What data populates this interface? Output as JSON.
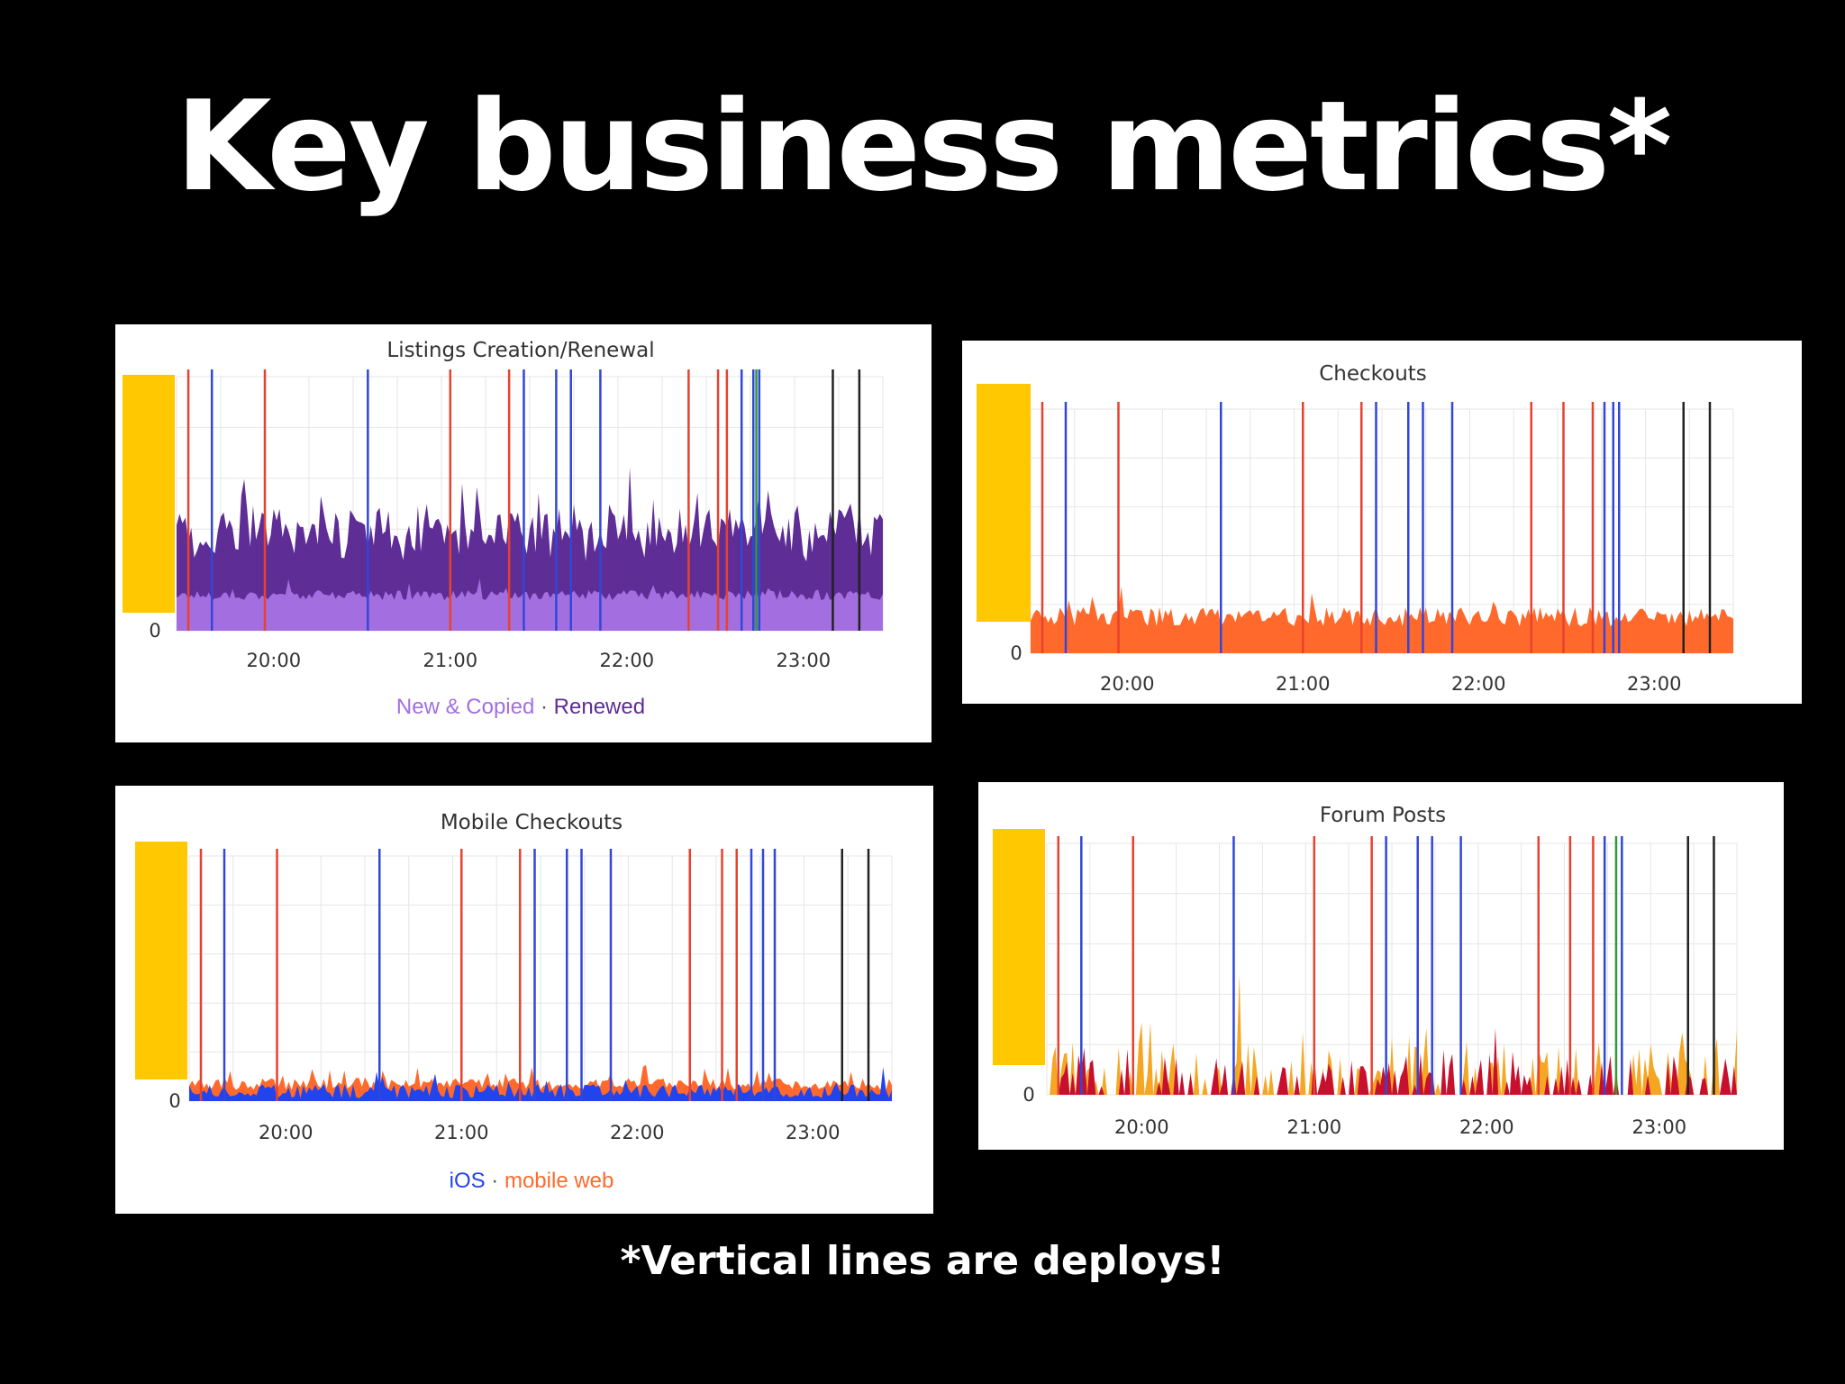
{
  "slide": {
    "title": "Key business metrics*",
    "footnote": "*Vertical lines are deploys!"
  },
  "colors": {
    "background": "#000000",
    "panel": "#ffffff",
    "grid": "#e6e6e6",
    "redacted_axis": "#ffc800",
    "deploy_red": "#e8412e",
    "deploy_blue": "#3246d8",
    "deploy_green": "#2e9a3c",
    "deploy_black": "#222222"
  },
  "chart_data": [
    {
      "type": "area",
      "title": "Listings Creation/Renewal",
      "x_ticks": [
        "20:00",
        "21:00",
        "22:00",
        "23:00"
      ],
      "x_range": [
        "19:27",
        "23:27"
      ],
      "y_ticks": [
        "0"
      ],
      "y_axis_redacted": true,
      "stacked": true,
      "legend_placement": "bottom-center",
      "legend_separator": "·",
      "series": [
        {
          "name": "New & Copied",
          "color": "#a36fe0",
          "level": 0.14,
          "noise": 0.02
        },
        {
          "name": "Renewed",
          "color": "#5e2d96",
          "level": 0.25,
          "noise": 0.1
        }
      ],
      "deploys": [
        {
          "t": "19:31",
          "c": "red"
        },
        {
          "t": "19:39",
          "c": "blue"
        },
        {
          "t": "19:57",
          "c": "red"
        },
        {
          "t": "20:32",
          "c": "blue"
        },
        {
          "t": "21:00",
          "c": "red"
        },
        {
          "t": "21:20",
          "c": "red"
        },
        {
          "t": "21:25",
          "c": "blue"
        },
        {
          "t": "21:36",
          "c": "blue"
        },
        {
          "t": "21:41",
          "c": "blue"
        },
        {
          "t": "21:51",
          "c": "blue"
        },
        {
          "t": "22:21",
          "c": "red"
        },
        {
          "t": "22:31",
          "c": "red"
        },
        {
          "t": "22:34",
          "c": "red"
        },
        {
          "t": "22:39",
          "c": "blue"
        },
        {
          "t": "22:43",
          "c": "blue"
        },
        {
          "t": "22:44",
          "c": "green"
        },
        {
          "t": "22:45",
          "c": "blue"
        },
        {
          "t": "23:10",
          "c": "black"
        },
        {
          "t": "23:19",
          "c": "black"
        }
      ]
    },
    {
      "type": "area",
      "title": "Checkouts",
      "x_ticks": [
        "20:00",
        "21:00",
        "22:00",
        "23:00"
      ],
      "x_range": [
        "19:27",
        "23:27"
      ],
      "y_ticks": [
        "0"
      ],
      "y_axis_redacted": true,
      "stacked": false,
      "series": [
        {
          "name": "",
          "color": "#ff6a2c",
          "level": 0.15,
          "noise": 0.04
        }
      ],
      "deploys": [
        {
          "t": "19:31",
          "c": "red"
        },
        {
          "t": "19:39",
          "c": "blue"
        },
        {
          "t": "19:57",
          "c": "red"
        },
        {
          "t": "20:32",
          "c": "blue"
        },
        {
          "t": "21:00",
          "c": "red"
        },
        {
          "t": "21:20",
          "c": "red"
        },
        {
          "t": "21:25",
          "c": "blue"
        },
        {
          "t": "21:36",
          "c": "blue"
        },
        {
          "t": "21:41",
          "c": "blue"
        },
        {
          "t": "21:51",
          "c": "blue"
        },
        {
          "t": "22:18",
          "c": "red"
        },
        {
          "t": "22:29",
          "c": "red"
        },
        {
          "t": "22:39",
          "c": "red"
        },
        {
          "t": "22:43",
          "c": "blue"
        },
        {
          "t": "22:46",
          "c": "blue"
        },
        {
          "t": "22:48",
          "c": "blue"
        },
        {
          "t": "23:10",
          "c": "black"
        },
        {
          "t": "23:19",
          "c": "black"
        }
      ]
    },
    {
      "type": "area",
      "title": "Mobile Checkouts",
      "x_ticks": [
        "20:00",
        "21:00",
        "22:00",
        "23:00"
      ],
      "x_range": [
        "19:27",
        "23:27"
      ],
      "y_ticks": [
        "0"
      ],
      "y_axis_redacted": true,
      "stacked": false,
      "legend_placement": "bottom-center",
      "legend_separator": "·",
      "series": [
        {
          "name": "mobile web",
          "color": "#ff6a2c",
          "level": 0.07,
          "noise": 0.025
        },
        {
          "name": "iOS",
          "color": "#2244ee",
          "level": 0.04,
          "noise": 0.03
        }
      ],
      "deploys": [
        {
          "t": "19:31",
          "c": "red"
        },
        {
          "t": "19:39",
          "c": "blue"
        },
        {
          "t": "19:57",
          "c": "red"
        },
        {
          "t": "20:32",
          "c": "blue"
        },
        {
          "t": "21:00",
          "c": "red"
        },
        {
          "t": "21:20",
          "c": "red"
        },
        {
          "t": "21:25",
          "c": "blue"
        },
        {
          "t": "21:36",
          "c": "blue"
        },
        {
          "t": "21:41",
          "c": "blue"
        },
        {
          "t": "21:51",
          "c": "blue"
        },
        {
          "t": "22:18",
          "c": "red"
        },
        {
          "t": "22:29",
          "c": "red"
        },
        {
          "t": "22:34",
          "c": "red"
        },
        {
          "t": "22:39",
          "c": "blue"
        },
        {
          "t": "22:43",
          "c": "blue"
        },
        {
          "t": "22:47",
          "c": "blue"
        },
        {
          "t": "23:10",
          "c": "black"
        },
        {
          "t": "23:19",
          "c": "black"
        }
      ]
    },
    {
      "type": "area",
      "title": "Forum Posts",
      "x_ticks": [
        "20:00",
        "21:00",
        "22:00",
        "23:00"
      ],
      "x_range": [
        "19:27",
        "23:27"
      ],
      "y_ticks": [
        "0"
      ],
      "y_axis_redacted": true,
      "stacked": false,
      "series": [
        {
          "name": "",
          "color": "#f5a623",
          "level": 0.13,
          "noise": 0.07,
          "sparse": true
        },
        {
          "name": "",
          "color": "#c8102e",
          "level": 0.1,
          "noise": 0.05,
          "sparse": true
        }
      ],
      "deploys": [
        {
          "t": "19:31",
          "c": "red"
        },
        {
          "t": "19:39",
          "c": "blue"
        },
        {
          "t": "19:57",
          "c": "red"
        },
        {
          "t": "20:32",
          "c": "blue"
        },
        {
          "t": "21:00",
          "c": "red"
        },
        {
          "t": "21:20",
          "c": "red"
        },
        {
          "t": "21:25",
          "c": "blue"
        },
        {
          "t": "21:36",
          "c": "blue"
        },
        {
          "t": "21:41",
          "c": "blue"
        },
        {
          "t": "21:51",
          "c": "blue"
        },
        {
          "t": "22:18",
          "c": "red"
        },
        {
          "t": "22:29",
          "c": "red"
        },
        {
          "t": "22:37",
          "c": "red"
        },
        {
          "t": "22:41",
          "c": "blue"
        },
        {
          "t": "22:45",
          "c": "green"
        },
        {
          "t": "22:47",
          "c": "blue"
        },
        {
          "t": "23:10",
          "c": "black"
        },
        {
          "t": "23:19",
          "c": "black"
        }
      ]
    }
  ]
}
